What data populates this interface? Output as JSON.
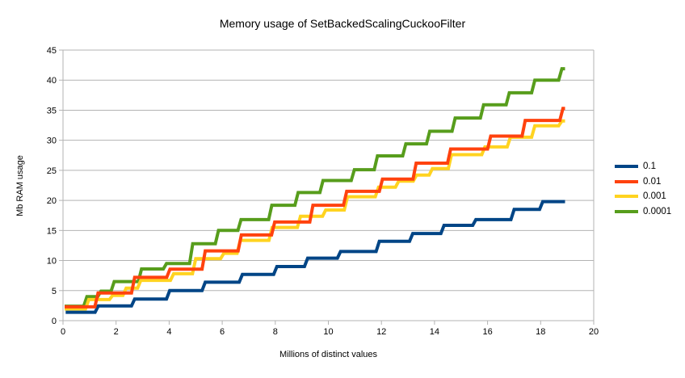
{
  "chart_data": {
    "type": "line",
    "subtype": "step",
    "title": "Memory usage of SetBackedScalingCuckooFilter",
    "xlabel": "Millions of distinct values",
    "ylabel": "Mb RAM usage",
    "xlim": [
      0,
      20
    ],
    "ylim": [
      0,
      45
    ],
    "x_ticks": [
      0,
      2,
      4,
      6,
      8,
      10,
      12,
      14,
      16,
      18,
      20
    ],
    "y_ticks": [
      0,
      5,
      10,
      15,
      20,
      25,
      30,
      35,
      40,
      45
    ],
    "grid": "horizontal-only",
    "grid_color": "#b3b3b3",
    "background_color": "#ffffff",
    "text_color": "#000000",
    "legend_position": "right",
    "x_end": 18.92,
    "series": [
      {
        "name": "0.1",
        "color": "#004586",
        "points": [
          [
            0.1,
            1.4
          ],
          [
            1.33,
            2.45
          ],
          [
            2.7,
            3.6
          ],
          [
            4.02,
            5.0
          ],
          [
            5.36,
            6.4
          ],
          [
            6.76,
            7.7
          ],
          [
            8.06,
            9.0
          ],
          [
            9.22,
            10.4
          ],
          [
            10.46,
            11.5
          ],
          [
            11.92,
            13.2
          ],
          [
            13.18,
            14.5
          ],
          [
            14.36,
            15.85
          ],
          [
            15.56,
            16.8
          ],
          [
            17.0,
            18.5
          ],
          [
            18.08,
            19.8
          ]
        ]
      },
      {
        "name": "0.01",
        "color": "#ff420e",
        "points": [
          [
            0.06,
            2.3
          ],
          [
            1.32,
            4.6
          ],
          [
            2.7,
            7.2
          ],
          [
            4.03,
            8.55
          ],
          [
            5.36,
            11.6
          ],
          [
            6.72,
            14.25
          ],
          [
            7.98,
            16.4
          ],
          [
            9.42,
            19.2
          ],
          [
            10.69,
            21.5
          ],
          [
            12.04,
            23.55
          ],
          [
            13.31,
            26.2
          ],
          [
            14.61,
            28.55
          ],
          [
            16.12,
            30.7
          ],
          [
            17.42,
            33.3
          ],
          [
            18.84,
            35.3
          ]
        ]
      },
      {
        "name": "0.001",
        "color": "#ffd320",
        "points": [
          [
            0.06,
            1.95
          ],
          [
            0.97,
            3.5
          ],
          [
            1.87,
            4.2
          ],
          [
            2.38,
            5.4
          ],
          [
            2.93,
            6.7
          ],
          [
            4.17,
            7.8
          ],
          [
            5.0,
            10.3
          ],
          [
            6.06,
            11.2
          ],
          [
            6.68,
            13.35
          ],
          [
            7.88,
            15.5
          ],
          [
            8.95,
            17.35
          ],
          [
            9.9,
            18.4
          ],
          [
            10.72,
            20.6
          ],
          [
            11.89,
            22.2
          ],
          [
            12.65,
            23.2
          ],
          [
            13.32,
            24.2
          ],
          [
            13.92,
            25.3
          ],
          [
            14.64,
            27.6
          ],
          [
            15.9,
            28.9
          ],
          [
            16.86,
            30.5
          ],
          [
            17.78,
            32.4
          ],
          [
            18.8,
            33.2
          ]
        ]
      },
      {
        "name": "0.0001",
        "color": "#579d1c",
        "points": [
          [
            0.06,
            2.4
          ],
          [
            0.9,
            4.0
          ],
          [
            1.43,
            4.9
          ],
          [
            1.93,
            6.5
          ],
          [
            2.96,
            8.6
          ],
          [
            3.9,
            9.5
          ],
          [
            4.89,
            12.8
          ],
          [
            5.86,
            15.0
          ],
          [
            6.71,
            16.8
          ],
          [
            7.87,
            19.2
          ],
          [
            8.86,
            21.3
          ],
          [
            9.8,
            23.3
          ],
          [
            10.98,
            25.1
          ],
          [
            11.85,
            27.4
          ],
          [
            12.92,
            29.4
          ],
          [
            13.82,
            31.5
          ],
          [
            14.78,
            33.7
          ],
          [
            15.85,
            35.9
          ],
          [
            16.82,
            37.9
          ],
          [
            17.78,
            40.0
          ],
          [
            18.8,
            41.9
          ]
        ]
      }
    ]
  }
}
